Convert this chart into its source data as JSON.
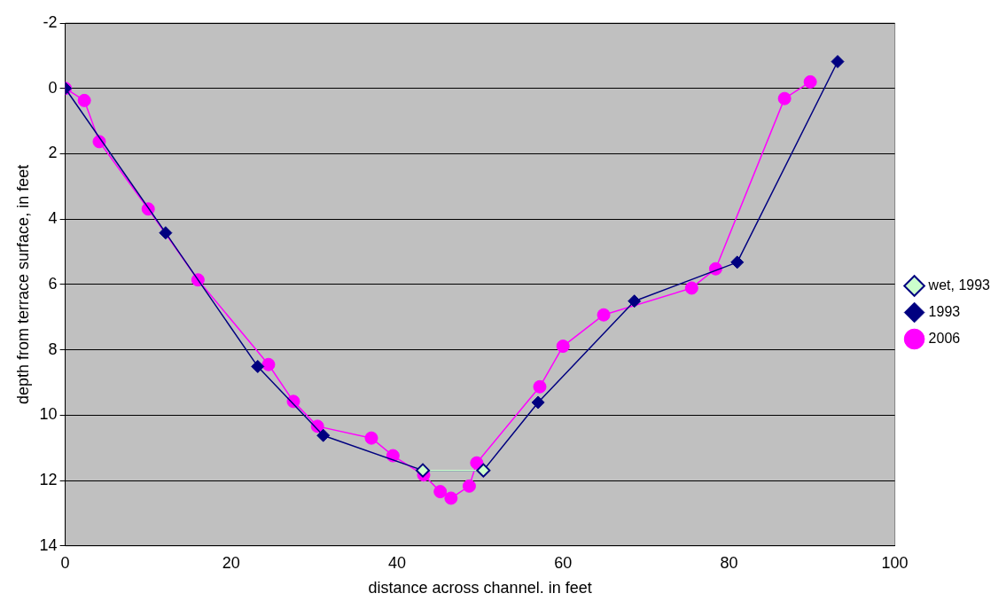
{
  "chart_data": {
    "type": "line",
    "xlabel": "distance across channel. in feet",
    "ylabel": "depth from terrace surface, in feet",
    "xlim": [
      0,
      100
    ],
    "xticks": [
      0,
      20,
      40,
      60,
      80,
      100
    ],
    "ylim": [
      14,
      -2
    ],
    "yticks": [
      -2,
      0,
      2,
      4,
      6,
      8,
      10,
      12,
      14
    ],
    "grid": "y",
    "legend": "right",
    "series": [
      {
        "name": "2006",
        "color": "#ff00ff",
        "marker": "circle",
        "x": [
          0,
          2.3,
          4.1,
          10.0,
          16.0,
          24.5,
          27.5,
          30.4,
          36.9,
          39.5,
          43.2,
          45.2,
          46.5,
          48.7,
          49.6,
          57.2,
          60.0,
          64.9,
          75.5,
          78.4,
          86.7,
          89.8
        ],
        "values": [
          0,
          0.37,
          1.63,
          3.69,
          5.86,
          8.45,
          9.58,
          10.34,
          10.7,
          11.24,
          11.83,
          12.34,
          12.54,
          12.17,
          11.46,
          9.13,
          7.89,
          6.93,
          6.11,
          5.52,
          0.31,
          -0.2
        ]
      },
      {
        "name": "1993",
        "color": "#000080",
        "marker": "diamond",
        "x": [
          0,
          12.1,
          23.2,
          31.1,
          43.1,
          50.4,
          57.0,
          68.6,
          81.0,
          93.1
        ],
        "values": [
          0,
          4.42,
          8.51,
          10.62,
          11.69,
          11.69,
          9.61,
          6.51,
          5.32,
          -0.82
        ]
      },
      {
        "name": "wet, 1993",
        "color": "#ccffcc",
        "marker": "diamond",
        "x": [
          43.1,
          50.4
        ],
        "values": [
          11.69,
          11.69
        ]
      }
    ]
  }
}
